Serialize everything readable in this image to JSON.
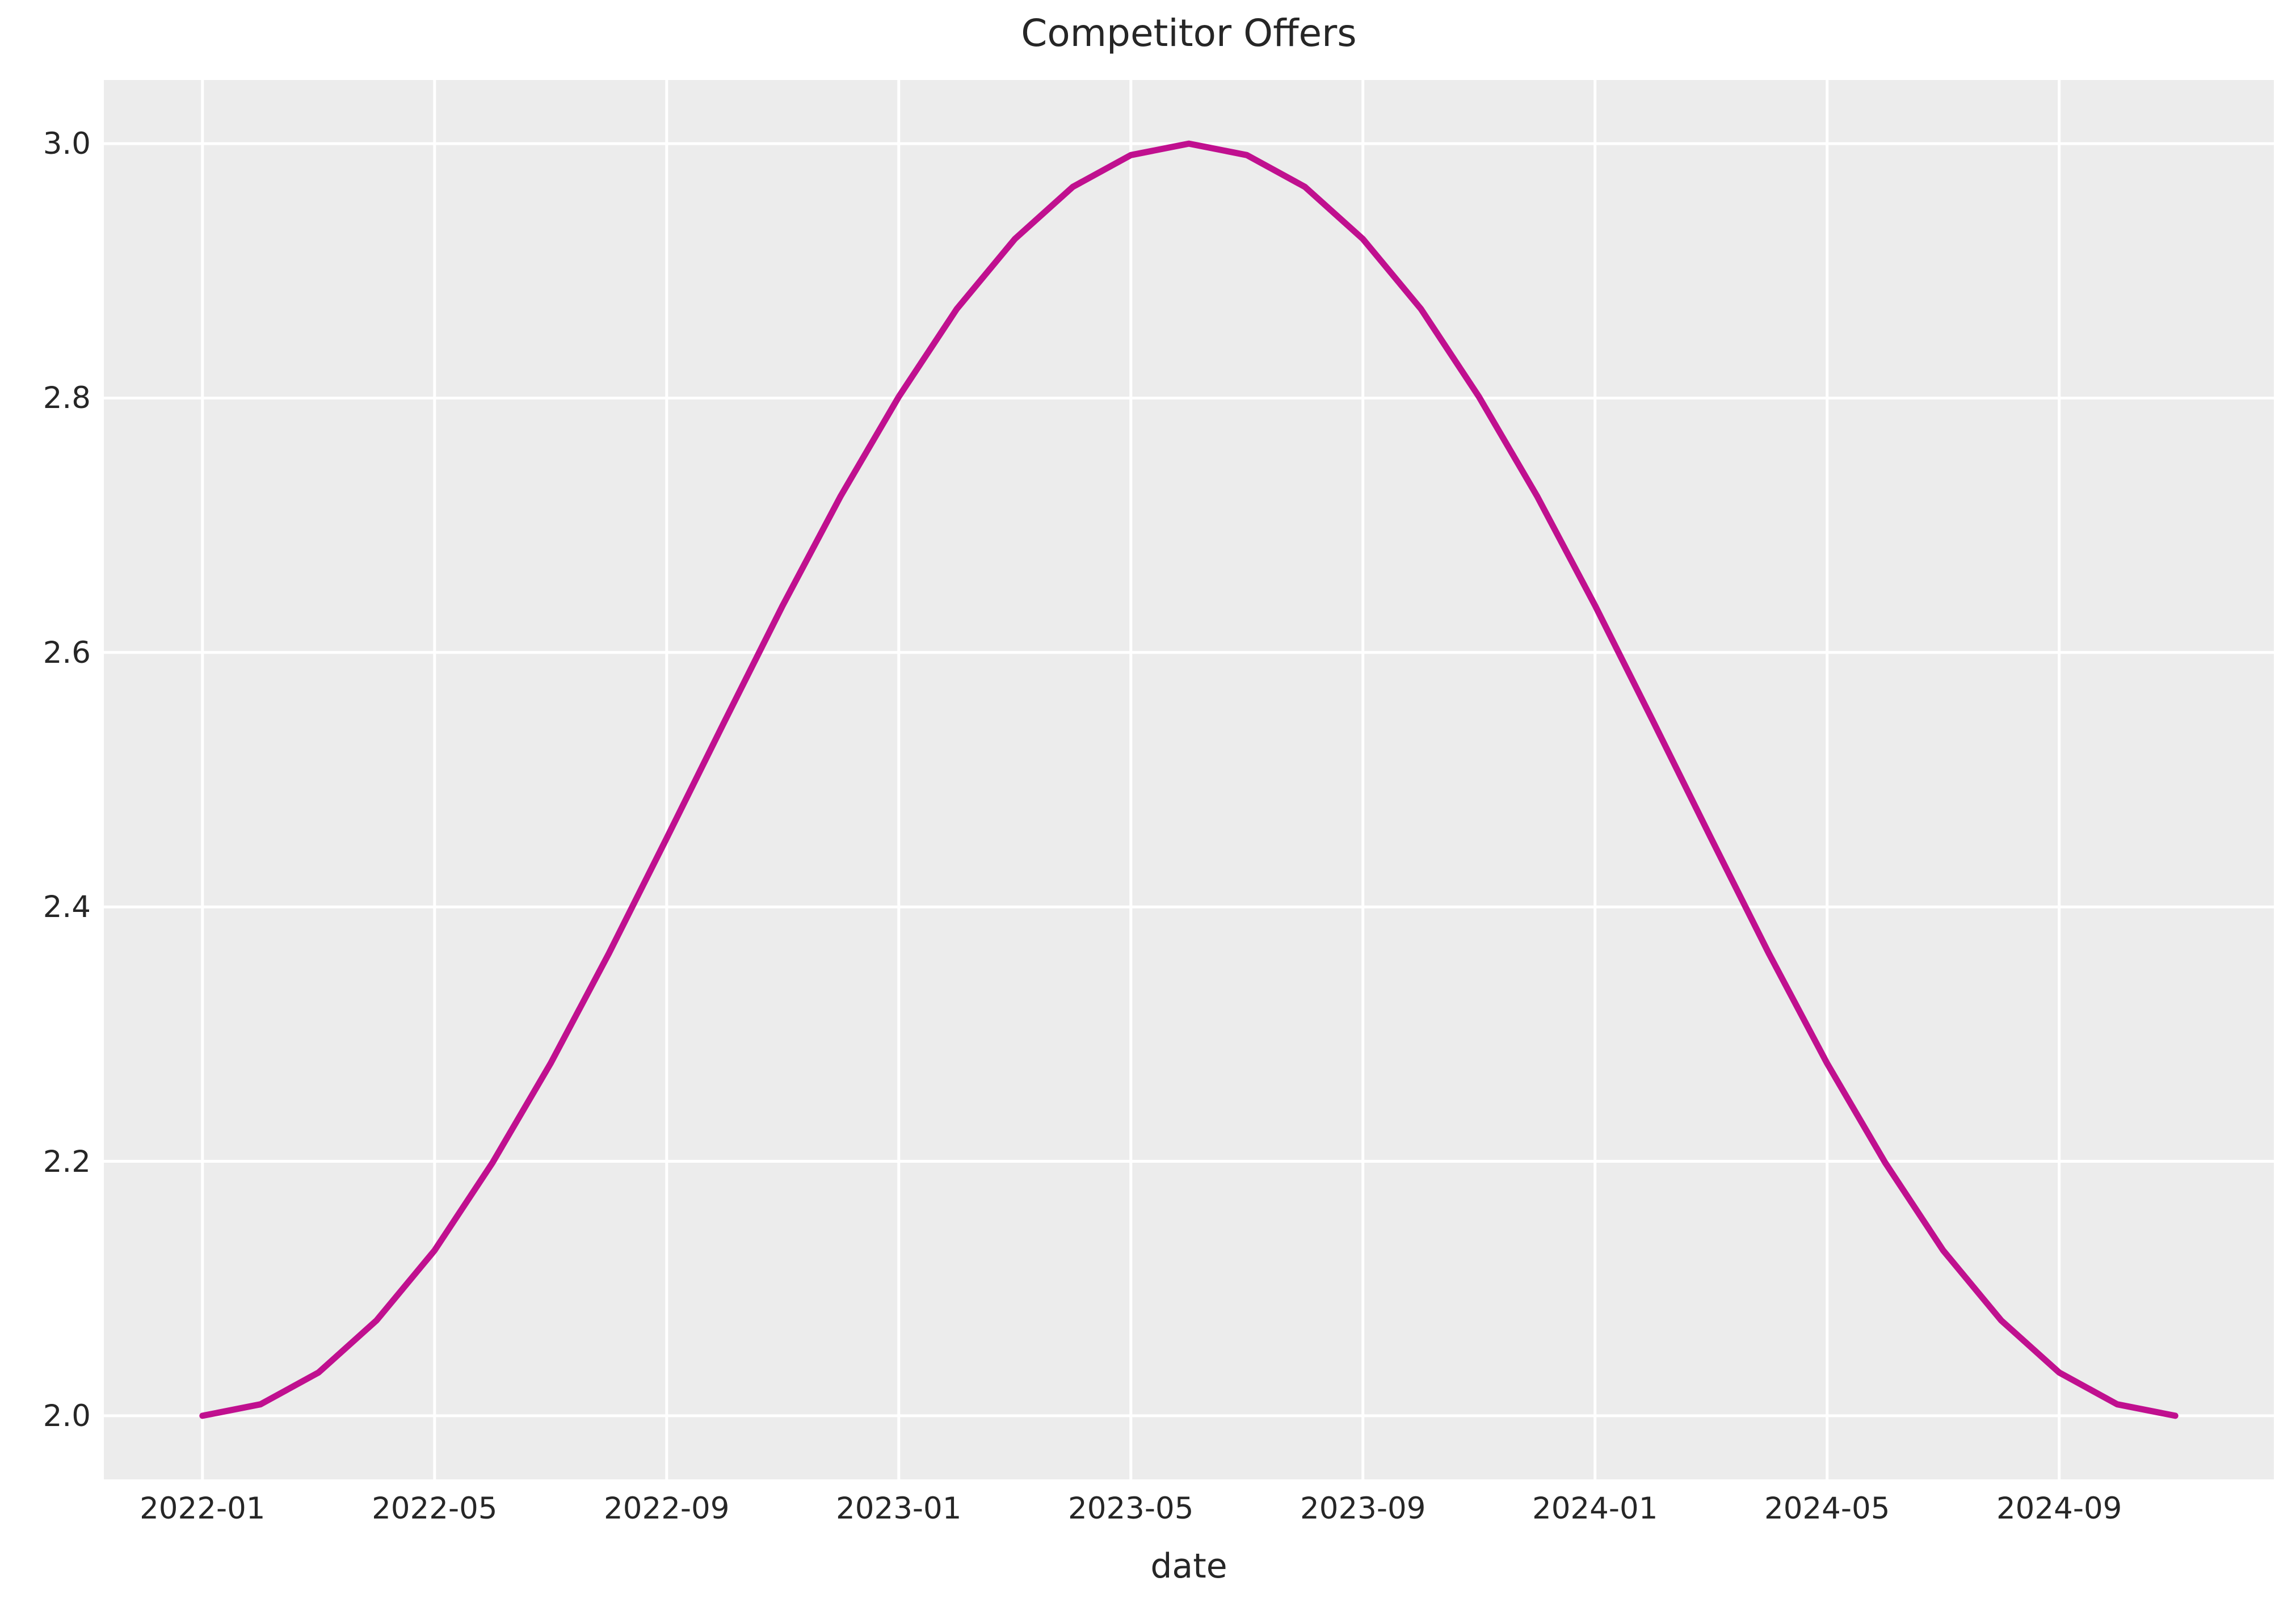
{
  "figure": {
    "background_color": "#ffffff",
    "plot_background_color": "#ececec",
    "grid_color": "#ffffff",
    "text_color": "#262626",
    "line_color": "#c0108f"
  },
  "chart_data": {
    "type": "line",
    "title": "Competitor Offers",
    "xlabel": "date",
    "ylabel": "",
    "legend": "none",
    "grid": true,
    "ylim": [
      1.95,
      3.05
    ],
    "x_margin_frac": 0.05,
    "yticks": [
      {
        "label": "2.0",
        "value": 2.0
      },
      {
        "label": "2.2",
        "value": 2.2
      },
      {
        "label": "2.4",
        "value": 2.4
      },
      {
        "label": "2.6",
        "value": 2.6
      },
      {
        "label": "2.8",
        "value": 2.8
      },
      {
        "label": "3.0",
        "value": 3.0
      }
    ],
    "xticks": [
      {
        "label": "2022-01",
        "month_index": 0
      },
      {
        "label": "2022-05",
        "month_index": 4
      },
      {
        "label": "2022-09",
        "month_index": 8
      },
      {
        "label": "2023-01",
        "month_index": 12
      },
      {
        "label": "2023-05",
        "month_index": 16
      },
      {
        "label": "2023-09",
        "month_index": 20
      },
      {
        "label": "2024-01",
        "month_index": 24
      },
      {
        "label": "2024-05",
        "month_index": 28
      },
      {
        "label": "2024-09",
        "month_index": 32
      }
    ],
    "x": [
      "2022-01",
      "2022-02",
      "2022-03",
      "2022-04",
      "2022-05",
      "2022-06",
      "2022-07",
      "2022-08",
      "2022-09",
      "2022-10",
      "2022-11",
      "2022-12",
      "2023-01",
      "2023-02",
      "2023-03",
      "2023-04",
      "2023-05",
      "2023-06",
      "2023-07",
      "2023-08",
      "2023-09",
      "2023-10",
      "2023-11",
      "2023-12",
      "2024-01",
      "2024-02",
      "2024-03",
      "2024-04",
      "2024-05",
      "2024-06",
      "2024-07",
      "2024-08",
      "2024-09",
      "2024-10",
      "2024-11"
    ],
    "values": [
      2.0,
      2.009,
      2.034,
      2.075,
      2.13,
      2.199,
      2.277,
      2.363,
      2.454,
      2.546,
      2.637,
      2.723,
      2.801,
      2.87,
      2.925,
      2.966,
      2.991,
      3.0,
      2.991,
      2.966,
      2.925,
      2.87,
      2.801,
      2.723,
      2.637,
      2.546,
      2.454,
      2.363,
      2.277,
      2.199,
      2.13,
      2.075,
      2.034,
      2.009,
      2.0
    ]
  }
}
